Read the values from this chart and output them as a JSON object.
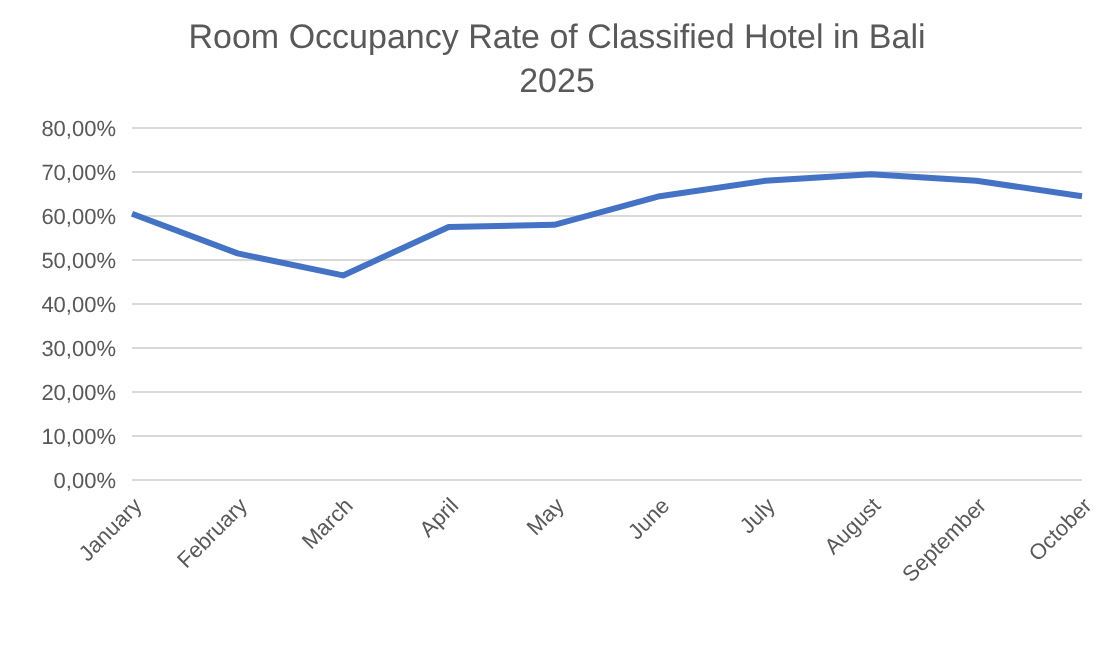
{
  "chart_data": {
    "type": "line",
    "title": "Room Occupancy Rate of Classified Hotel in Bali",
    "subtitle": "2025",
    "categories": [
      "January",
      "February",
      "March",
      "April",
      "May",
      "June",
      "July",
      "August",
      "September",
      "October"
    ],
    "series": [
      {
        "color": "#4472c4",
        "values": [
          60.5,
          51.5,
          46.5,
          57.5,
          58,
          64.5,
          68,
          69.5,
          68,
          64.5
        ]
      }
    ],
    "ylim": [
      0,
      80
    ],
    "yticks": [
      {
        "value": 0,
        "label": "0,00%"
      },
      {
        "value": 10,
        "label": "10,00%"
      },
      {
        "value": 20,
        "label": "20,00%"
      },
      {
        "value": 30,
        "label": "30,00%"
      },
      {
        "value": 40,
        "label": "40,00%"
      },
      {
        "value": 50,
        "label": "50,00%"
      },
      {
        "value": 60,
        "label": "60,00%"
      },
      {
        "value": 70,
        "label": "70,00%"
      },
      {
        "value": 80,
        "label": "80,00%"
      }
    ],
    "grid": "y",
    "legend": false,
    "marker": "none",
    "line_style": "solid"
  }
}
